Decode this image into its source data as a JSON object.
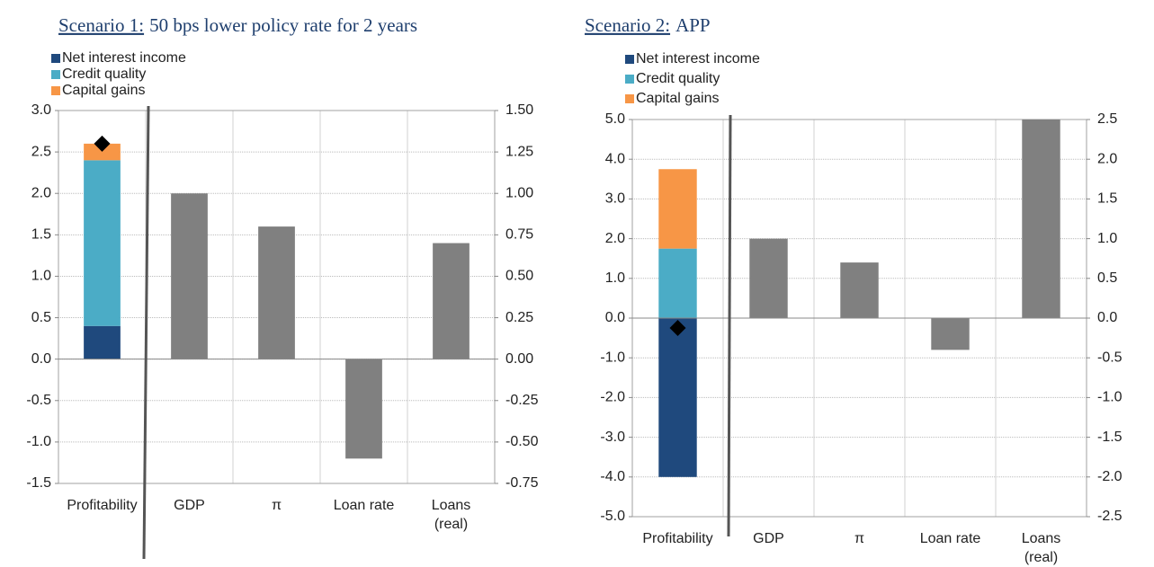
{
  "chart_data": [
    {
      "type": "bar",
      "label": "Scenario 1:",
      "title": "50 bps lower policy rate for 2 years",
      "categories": [
        "Profitability",
        "GDP",
        "π",
        "Loan rate",
        "Loans\n(real)"
      ],
      "series": [
        {
          "name": "Net interest income",
          "color": "#1f497d",
          "values": [
            0.4,
            null,
            null,
            null,
            null
          ]
        },
        {
          "name": "Credit quality",
          "color": "#4bacc6",
          "values": [
            2.0,
            null,
            null,
            null,
            null
          ]
        },
        {
          "name": "Capital gains",
          "color": "#f79646",
          "values": [
            0.2,
            null,
            null,
            null,
            null
          ]
        }
      ],
      "bars": {
        "color": "#808080",
        "axis": "y2",
        "values": [
          null,
          1.0,
          0.8,
          -0.6,
          0.7
        ]
      },
      "markers": {
        "color": "#000000",
        "values": [
          2.6,
          null,
          null,
          null,
          null
        ]
      },
      "ylim": [
        -1.5,
        3.0
      ],
      "yticks": [
        {
          "value": -1.5,
          "label": "-1.5"
        },
        {
          "value": -1.0,
          "label": "-1.0"
        },
        {
          "value": -0.5,
          "label": "-0.5"
        },
        {
          "value": 0,
          "label": "0.0"
        },
        {
          "value": 0.5,
          "label": "0.5"
        },
        {
          "value": 1.0,
          "label": "1.0"
        },
        {
          "value": 1.5,
          "label": "1.5"
        },
        {
          "value": 2.0,
          "label": "2.0"
        },
        {
          "value": 2.5,
          "label": "2.5"
        },
        {
          "value": 3.0,
          "label": "3.0"
        }
      ],
      "y2lim": [
        -0.75,
        1.5
      ],
      "y2ticks": [
        {
          "value": -0.75,
          "label": "-0.75"
        },
        {
          "value": -0.5,
          "label": "-0.50"
        },
        {
          "value": -0.25,
          "label": "-0.25"
        },
        {
          "value": 0,
          "label": "0.00"
        },
        {
          "value": 0.25,
          "label": "0.25"
        },
        {
          "value": 0.5,
          "label": "0.50"
        },
        {
          "value": 0.75,
          "label": "0.75"
        },
        {
          "value": 1.0,
          "label": "1.00"
        },
        {
          "value": 1.25,
          "label": "1.25"
        },
        {
          "value": 1.5,
          "label": "1.50"
        }
      ],
      "grid": true
    },
    {
      "type": "bar",
      "label": "Scenario 2:",
      "title": "APP",
      "categories": [
        "Profitability",
        "GDP",
        "π",
        "Loan rate",
        "Loans\n(real)"
      ],
      "series": [
        {
          "name": "Net interest income",
          "color": "#1f497d",
          "values": [
            -4.0,
            null,
            null,
            null,
            null
          ]
        },
        {
          "name": "Credit quality",
          "color": "#4bacc6",
          "values": [
            1.75,
            null,
            null,
            null,
            null
          ]
        },
        {
          "name": "Capital gains",
          "color": "#f79646",
          "values": [
            2.0,
            null,
            null,
            null,
            null
          ]
        }
      ],
      "bars": {
        "color": "#808080",
        "axis": "y2",
        "values": [
          null,
          1.0,
          0.7,
          -0.4,
          2.5
        ]
      },
      "markers": {
        "color": "#000000",
        "values": [
          -0.25,
          null,
          null,
          null,
          null
        ]
      },
      "ylim": [
        -5.0,
        5.0
      ],
      "yticks": [
        {
          "value": -5,
          "label": "-5.0"
        },
        {
          "value": -4,
          "label": "-4.0"
        },
        {
          "value": -3,
          "label": "-3.0"
        },
        {
          "value": -2,
          "label": "-2.0"
        },
        {
          "value": -1,
          "label": "-1.0"
        },
        {
          "value": 0,
          "label": "0.0"
        },
        {
          "value": 1,
          "label": "1.0"
        },
        {
          "value": 2,
          "label": "2.0"
        },
        {
          "value": 3,
          "label": "3.0"
        },
        {
          "value": 4,
          "label": "4.0"
        },
        {
          "value": 5,
          "label": "5.0"
        }
      ],
      "y2lim": [
        -2.5,
        2.5
      ],
      "y2ticks": [
        {
          "value": -2.5,
          "label": "-2.5"
        },
        {
          "value": -2.0,
          "label": "-2.0"
        },
        {
          "value": -1.5,
          "label": "-1.5"
        },
        {
          "value": -1.0,
          "label": "-1.0"
        },
        {
          "value": -0.5,
          "label": "-0.5"
        },
        {
          "value": 0,
          "label": "0.0"
        },
        {
          "value": 0.5,
          "label": "0.5"
        },
        {
          "value": 1.0,
          "label": "1.0"
        },
        {
          "value": 1.5,
          "label": "1.5"
        },
        {
          "value": 2.0,
          "label": "2.0"
        },
        {
          "value": 2.5,
          "label": "2.5"
        }
      ],
      "grid": true
    }
  ]
}
